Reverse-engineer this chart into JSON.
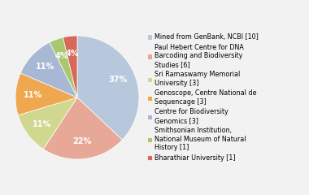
{
  "labels": [
    "Mined from GenBank, NCBI [10]",
    "Paul Hebert Centre for DNA\nBarcoding and Biodiversity\nStudies [6]",
    "Sri Ramaswamy Memorial\nUniversity [3]",
    "Genoscope, Centre National de\nSequencage [3]",
    "Centre for Biodiversity\nGenomics [3]",
    "Smithsonian Institution,\nNational Museum of Natural\nHistory [1]",
    "Bharathiar University [1]"
  ],
  "values": [
    10,
    6,
    3,
    3,
    3,
    1,
    1
  ],
  "colors": [
    "#b8c8dc",
    "#e8a898",
    "#d0d890",
    "#f0a850",
    "#a8b8d4",
    "#a8c870",
    "#d86858"
  ],
  "background_color": "#f2f2f2",
  "startangle": 90,
  "pct_fontsize": 7,
  "legend_fontsize": 5.8
}
